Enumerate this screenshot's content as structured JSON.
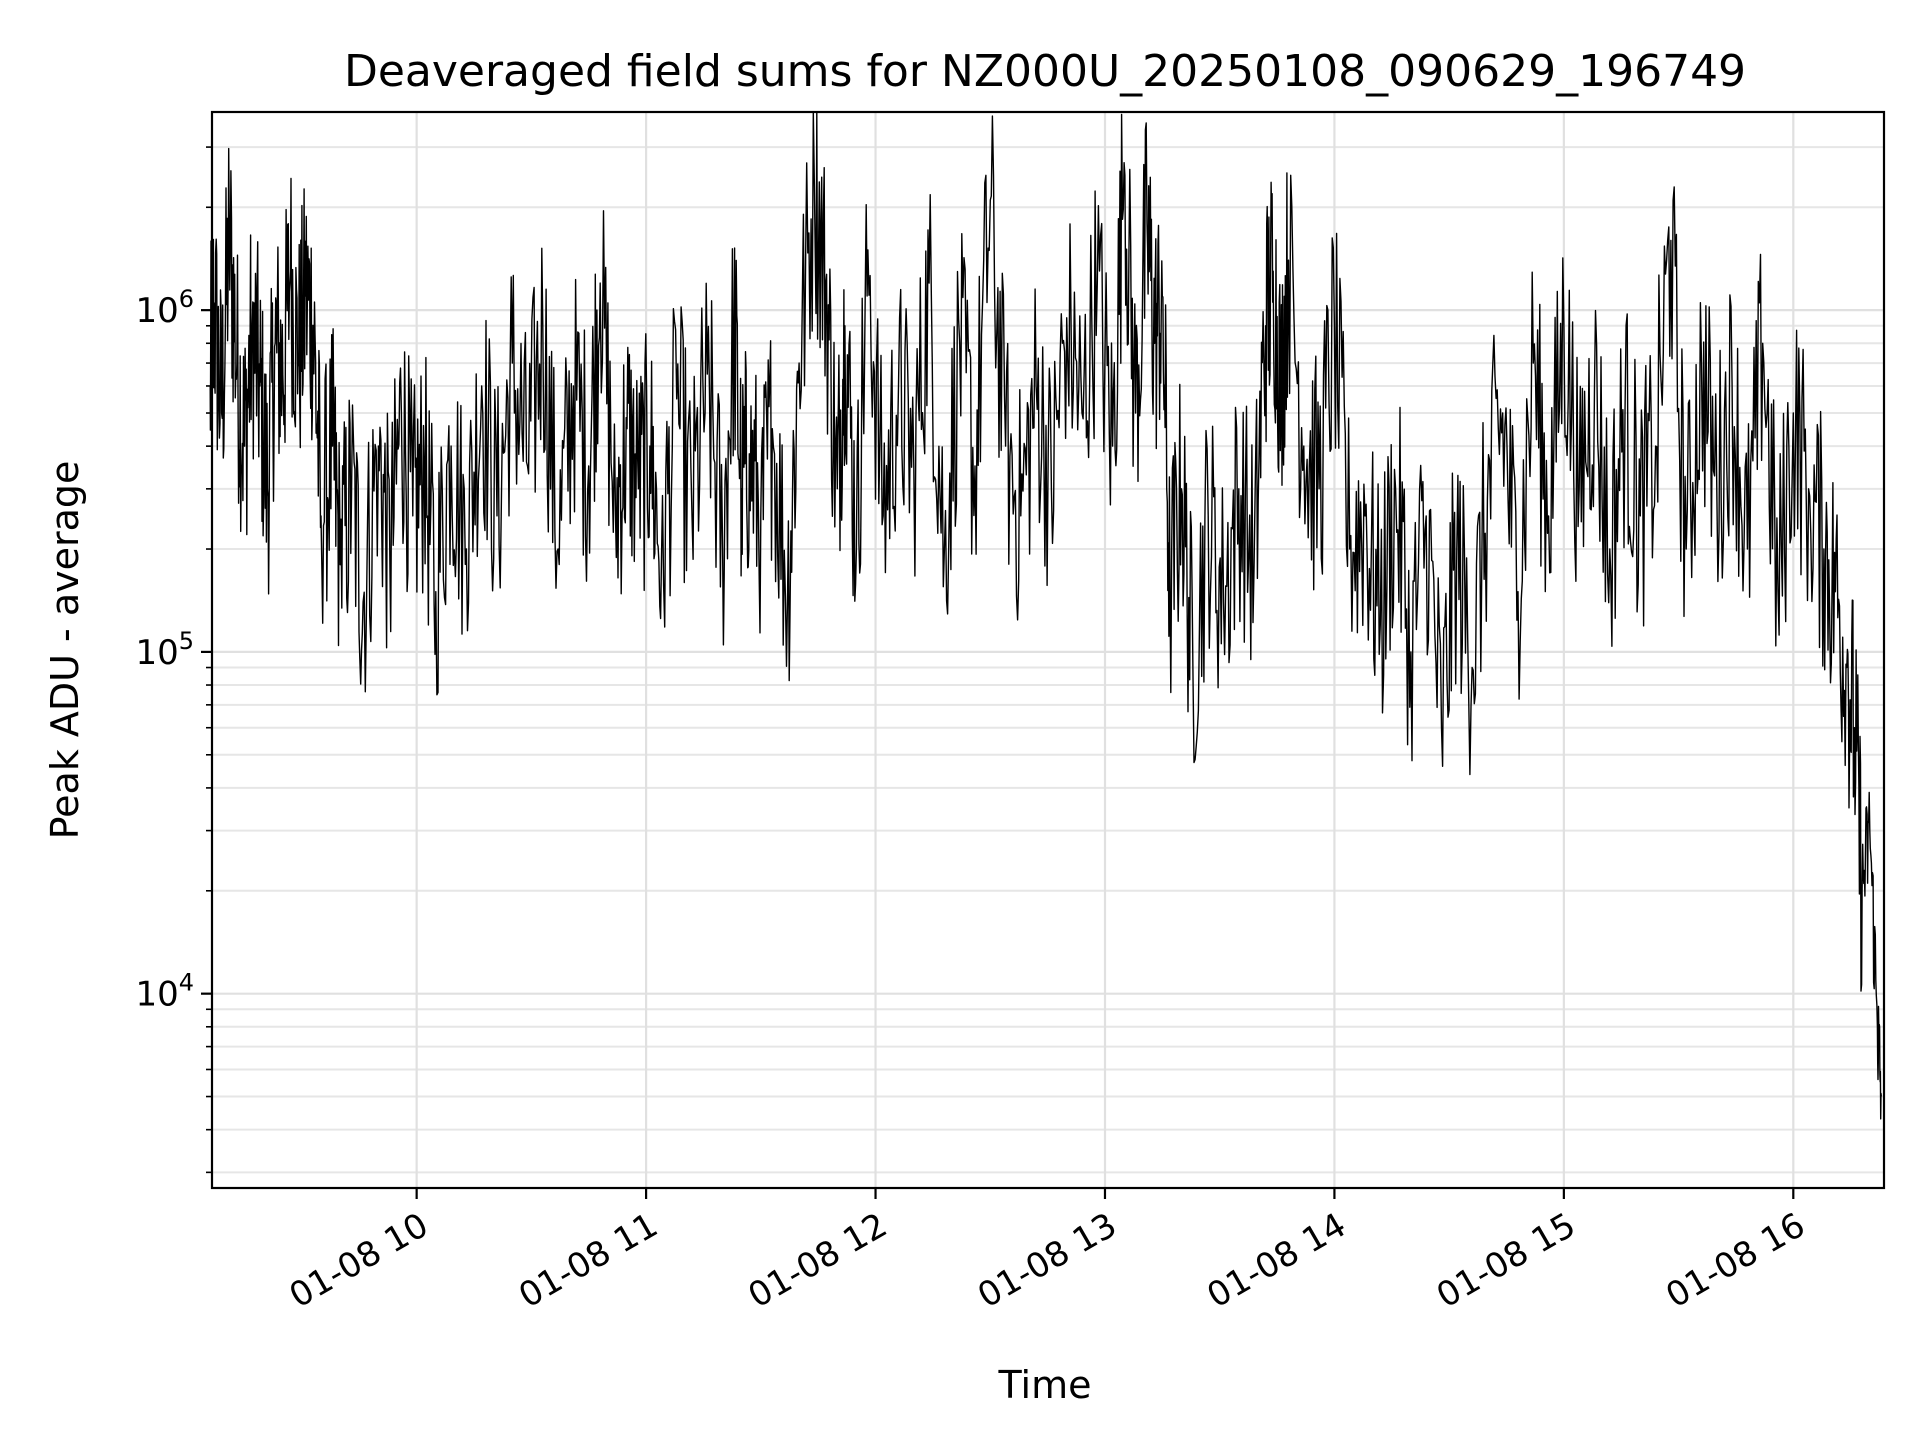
{
  "chart_data": {
    "type": "line",
    "title": "Deaveraged field sums for NZ000U_20250108_090629_196749",
    "xlabel": "Time",
    "ylabel": "Peak ADU - average",
    "yscale": "log",
    "ylim": [
      2700,
      3800000
    ],
    "xlim": [
      "2025-01-08 09:06:29",
      "2025-01-08 16:23:43"
    ],
    "grid": true,
    "x_ticks": [
      {
        "value": "2025-01-08 10:00",
        "label": "01-08 10"
      },
      {
        "value": "2025-01-08 11:00",
        "label": "01-08 11"
      },
      {
        "value": "2025-01-08 12:00",
        "label": "01-08 12"
      },
      {
        "value": "2025-01-08 13:00",
        "label": "01-08 13"
      },
      {
        "value": "2025-01-08 14:00",
        "label": "01-08 14"
      },
      {
        "value": "2025-01-08 15:00",
        "label": "01-08 15"
      },
      {
        "value": "2025-01-08 16:00",
        "label": "01-08 16"
      }
    ],
    "y_ticks": [
      {
        "value": 10000,
        "base": "10",
        "exp": "4"
      },
      {
        "value": 100000,
        "base": "10",
        "exp": "5"
      },
      {
        "value": 1000000,
        "base": "10",
        "exp": "6"
      }
    ],
    "series": [
      {
        "color": "#000000",
        "x": [
          "09:06",
          "09:07",
          "09:09",
          "09:11",
          "09:13",
          "09:15",
          "09:17",
          "09:19",
          "09:21",
          "09:23",
          "09:25",
          "09:27",
          "09:29",
          "09:31",
          "09:33",
          "09:35",
          "09:38",
          "09:40",
          "09:43",
          "09:46",
          "09:50",
          "09:53",
          "09:56",
          "09:59",
          "10:02",
          "10:05",
          "10:09",
          "10:13",
          "10:17",
          "10:21",
          "10:25",
          "10:29",
          "10:33",
          "10:37",
          "10:41",
          "10:45",
          "10:48",
          "10:52",
          "10:55",
          "10:58",
          "11:01",
          "11:04",
          "11:08",
          "11:12",
          "11:16",
          "11:20",
          "11:23",
          "11:25",
          "11:27",
          "11:30",
          "11:33",
          "11:37",
          "11:40",
          "11:44",
          "11:47",
          "11:50",
          "11:52",
          "11:55",
          "11:58",
          "12:02",
          "12:06",
          "12:10",
          "12:14",
          "12:18",
          "12:22",
          "12:26",
          "12:30",
          "12:34",
          "12:38",
          "12:42",
          "12:46",
          "12:50",
          "12:54",
          "12:58",
          "13:02",
          "13:05",
          "13:08",
          "13:11",
          "13:13",
          "13:15",
          "13:17",
          "13:20",
          "13:23",
          "13:27",
          "13:31",
          "13:35",
          "13:39",
          "13:42",
          "13:44",
          "13:46",
          "13:48",
          "13:52",
          "13:56",
          "14:00",
          "14:04",
          "14:08",
          "14:12",
          "14:16",
          "14:20",
          "14:24",
          "14:28",
          "14:32",
          "14:36",
          "14:40",
          "14:44",
          "14:48",
          "14:52",
          "14:56",
          "15:00",
          "15:04",
          "15:08",
          "15:12",
          "15:16",
          "15:20",
          "15:24",
          "15:28",
          "15:32",
          "15:36",
          "15:40",
          "15:44",
          "15:48",
          "15:52",
          "15:56",
          "16:00",
          "16:04",
          "16:08",
          "16:11",
          "16:14",
          "16:16",
          "16:18",
          "16:20",
          "16:22",
          "16:23"
        ],
        "y": [
          600000,
          1050000,
          500000,
          1700000,
          700000,
          400000,
          900000,
          600000,
          300000,
          800000,
          650000,
          1300000,
          700000,
          1100000,
          900000,
          250000,
          400000,
          180000,
          300000,
          140000,
          400000,
          180000,
          500000,
          250000,
          350000,
          150000,
          400000,
          200000,
          600000,
          250000,
          700000,
          350000,
          900000,
          200000,
          600000,
          350000,
          1200000,
          250000,
          450000,
          300000,
          400000,
          180000,
          550000,
          250000,
          650000,
          200000,
          900000,
          300000,
          380000,
          250000,
          450000,
          150000,
          700000,
          2300000,
          1200000,
          300000,
          900000,
          200000,
          1500000,
          250000,
          600000,
          350000,
          1200000,
          200000,
          800000,
          350000,
          2100000,
          400000,
          250000,
          600000,
          300000,
          950000,
          500000,
          1200000,
          400000,
          2700000,
          500000,
          1800000,
          800000,
          1100000,
          150000,
          300000,
          90000,
          250000,
          140000,
          300000,
          180000,
          900000,
          1300000,
          600000,
          1400000,
          400000,
          300000,
          900000,
          200000,
          250000,
          120000,
          300000,
          100000,
          250000,
          60000,
          200000,
          90000,
          280000,
          500000,
          150000,
          700000,
          250000,
          900000,
          300000,
          600000,
          200000,
          500000,
          250000,
          400000,
          1600000,
          200000,
          700000,
          300000,
          600000,
          200000,
          800000,
          150000,
          500000,
          300000,
          200000,
          150000,
          90000,
          60000,
          20000,
          30000,
          8000,
          5000
        ]
      }
    ]
  }
}
